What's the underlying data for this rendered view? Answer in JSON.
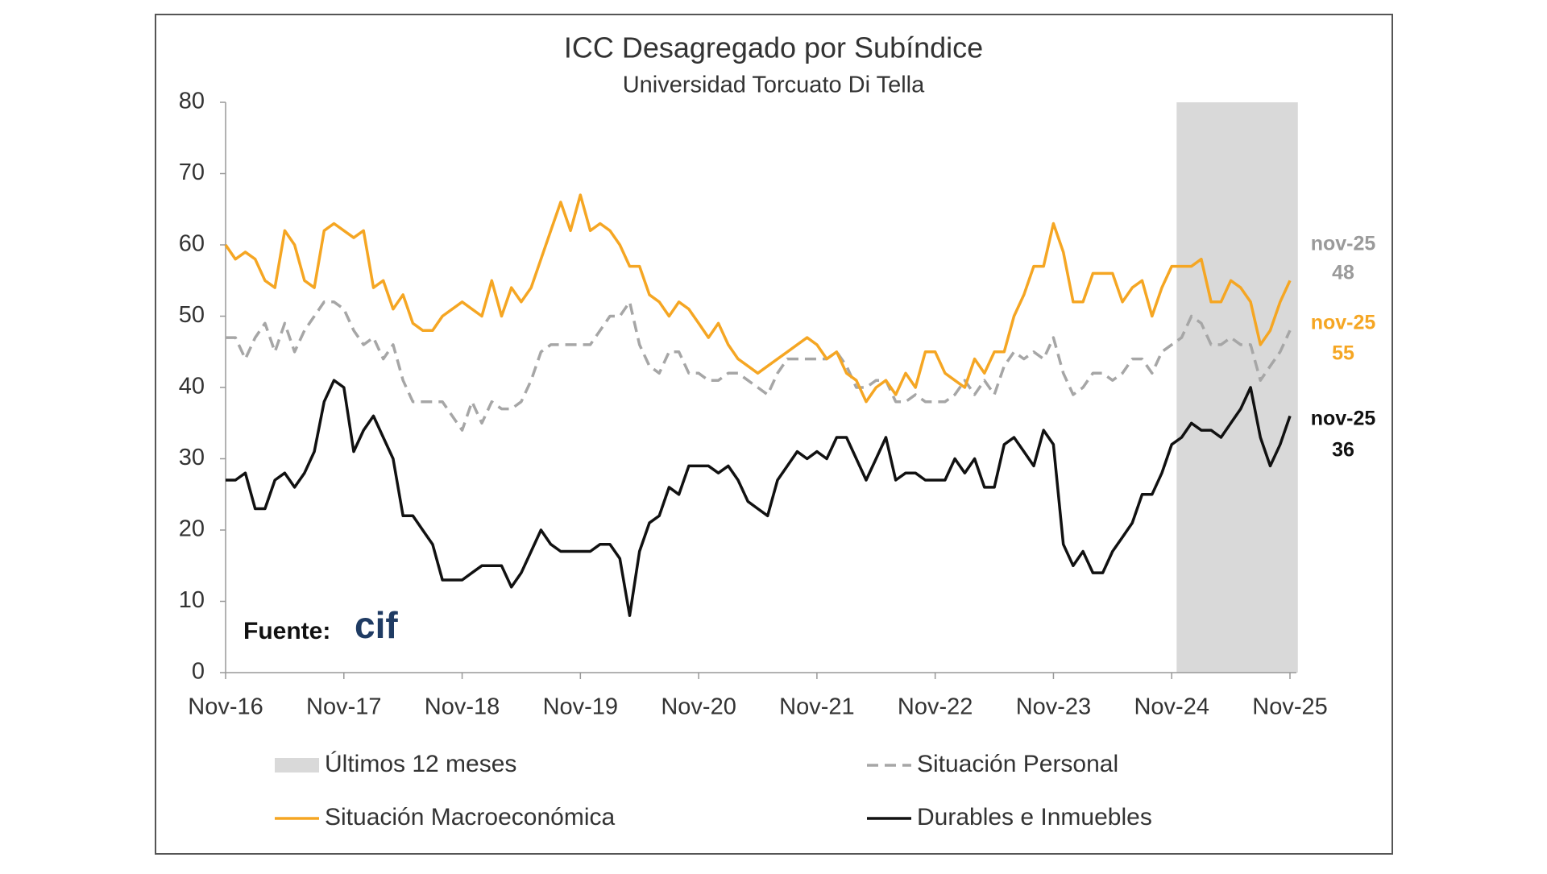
{
  "chart_data": {
    "type": "line",
    "title": "ICC Desagregado por Subíndice",
    "subtitle": "Universidad Torcuato Di Tella",
    "categories": [
      "Nov-16",
      null,
      null,
      null,
      null,
      null,
      null,
      null,
      null,
      null,
      null,
      null,
      "Nov-17",
      null,
      null,
      null,
      null,
      null,
      null,
      null,
      null,
      null,
      null,
      null,
      "Nov-18",
      null,
      null,
      null,
      null,
      null,
      null,
      null,
      null,
      null,
      null,
      null,
      "Nov-19",
      null,
      null,
      null,
      null,
      null,
      null,
      null,
      null,
      null,
      null,
      null,
      "Nov-20",
      null,
      null,
      null,
      null,
      null,
      null,
      null,
      null,
      null,
      null,
      null,
      "Nov-21",
      null,
      null,
      null,
      null,
      null,
      null,
      null,
      null,
      null,
      null,
      null,
      "Nov-22",
      null,
      null,
      null,
      null,
      null,
      null,
      null,
      null,
      null,
      null,
      null,
      "Nov-23",
      null,
      null,
      null,
      null,
      null,
      null,
      null,
      null,
      null,
      null,
      null,
      "Nov-24",
      null,
      null,
      null,
      null,
      null,
      null,
      null,
      null,
      null,
      null,
      null,
      "Nov-25"
    ],
    "series": [
      {
        "name": "Situación Personal",
        "color": "#a6a6a6",
        "dash": true,
        "end_label": "nov-25",
        "values": [
          47,
          47,
          44,
          47,
          49,
          45,
          49,
          45,
          48,
          50,
          52,
          52,
          51,
          48,
          46,
          47,
          44,
          46,
          41,
          38,
          38,
          38,
          38,
          36,
          34,
          38,
          35,
          38,
          37,
          37,
          38,
          41,
          45,
          46,
          46,
          46,
          46,
          46,
          48,
          50,
          50,
          52,
          46,
          43,
          42,
          45,
          45,
          42,
          42,
          41,
          41,
          42,
          42,
          41,
          40,
          39,
          42,
          44,
          44,
          44,
          44,
          44,
          45,
          43,
          40,
          40,
          41,
          41,
          38,
          38,
          39,
          38,
          38,
          38,
          39,
          41,
          39,
          41,
          39,
          43,
          45,
          44,
          45,
          44,
          47,
          42,
          39,
          40,
          42,
          42,
          41,
          42,
          44,
          44,
          42,
          45,
          46,
          47,
          50,
          49,
          46,
          46,
          47,
          46,
          46,
          41,
          43,
          45,
          48
        ]
      },
      {
        "name": "Situación Macroeconómica",
        "color": "#f5a623",
        "dash": false,
        "end_label": "nov-25",
        "values": [
          60,
          58,
          59,
          58,
          55,
          54,
          62,
          60,
          55,
          54,
          62,
          63,
          62,
          61,
          62,
          54,
          55,
          51,
          53,
          49,
          48,
          48,
          50,
          51,
          52,
          51,
          50,
          55,
          50,
          54,
          52,
          54,
          58,
          62,
          66,
          62,
          67,
          62,
          63,
          62,
          60,
          57,
          57,
          53,
          52,
          50,
          52,
          51,
          49,
          47,
          49,
          46,
          44,
          43,
          42,
          43,
          44,
          45,
          46,
          47,
          46,
          44,
          45,
          42,
          41,
          38,
          40,
          41,
          39,
          42,
          40,
          45,
          45,
          42,
          41,
          40,
          44,
          42,
          45,
          45,
          50,
          53,
          57,
          57,
          63,
          59,
          52,
          52,
          56,
          56,
          56,
          52,
          54,
          55,
          50,
          54,
          57,
          57,
          57,
          58,
          52,
          52,
          55,
          54,
          52,
          46,
          48,
          52,
          55
        ]
      },
      {
        "name": "Durables e Inmuebles",
        "color": "#111111",
        "dash": false,
        "end_label": "nov-25",
        "values": [
          27,
          27,
          28,
          23,
          23,
          27,
          28,
          26,
          28,
          31,
          38,
          41,
          40,
          31,
          34,
          36,
          33,
          30,
          22,
          22,
          20,
          18,
          13,
          13,
          13,
          14,
          15,
          15,
          15,
          12,
          14,
          17,
          20,
          18,
          17,
          17,
          17,
          17,
          18,
          18,
          16,
          8,
          17,
          21,
          22,
          26,
          25,
          29,
          29,
          29,
          28,
          29,
          27,
          24,
          23,
          22,
          27,
          29,
          31,
          30,
          31,
          30,
          33,
          33,
          30,
          27,
          30,
          33,
          27,
          28,
          28,
          27,
          27,
          27,
          30,
          28,
          30,
          26,
          26,
          32,
          33,
          31,
          29,
          34,
          32,
          18,
          15,
          17,
          14,
          14,
          17,
          19,
          21,
          25,
          25,
          28,
          32,
          33,
          35,
          34,
          34,
          33,
          35,
          37,
          40,
          33,
          29,
          32,
          36
        ]
      }
    ],
    "shaded": {
      "label": "Últimos 12 meses",
      "color": "#d9d9d9",
      "from_index": 97,
      "to_index": 108
    },
    "ylim": [
      0,
      80
    ],
    "yticks": [
      0,
      10,
      20,
      30,
      40,
      50,
      60,
      70,
      80
    ],
    "source_label": "Fuente:",
    "source": "cif"
  }
}
